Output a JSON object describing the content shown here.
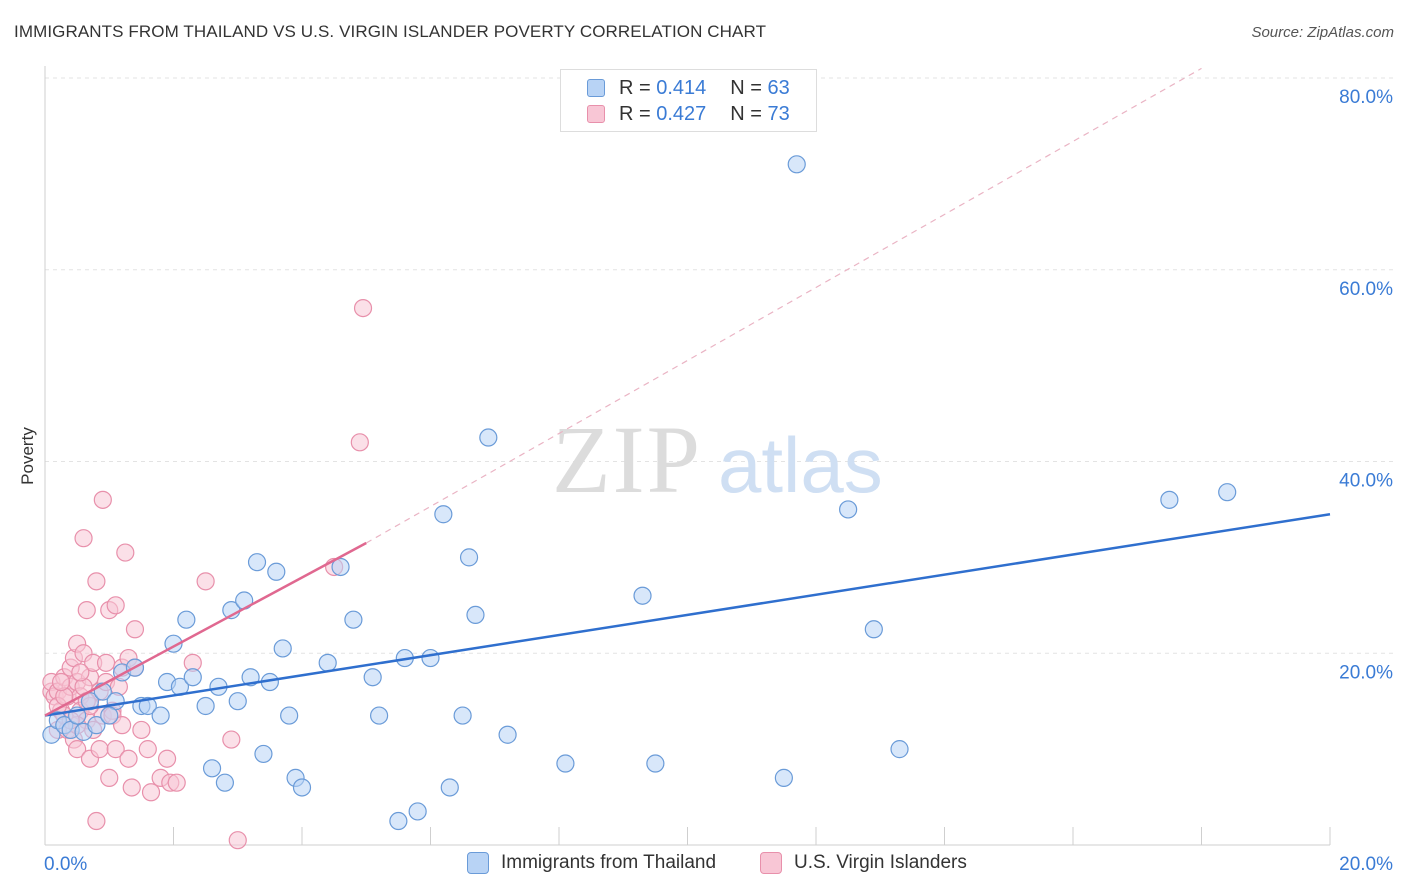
{
  "title": "IMMIGRANTS FROM THAILAND VS U.S. VIRGIN ISLANDER POVERTY CORRELATION CHART",
  "source": "Source: ZipAtlas.com",
  "watermark": {
    "zip": "ZIP",
    "atlas": "atlas"
  },
  "legend": {
    "r_label": "R =",
    "n_label": "N =",
    "series1": {
      "r": "0.414",
      "n": "63"
    },
    "series2": {
      "r": "0.427",
      "n": "73"
    }
  },
  "colors": {
    "blue_fill": "#b8d3f5",
    "blue_stroke": "#6a9bd8",
    "blue_line": "#2f6fce",
    "pink_fill": "#f8c6d5",
    "pink_stroke": "#e890ab",
    "pink_line": "#e06890",
    "axis_label": "#3a7bd5"
  },
  "chart_data": {
    "type": "scatter",
    "title": "IMMIGRANTS FROM THAILAND VS U.S. VIRGIN ISLANDER POVERTY CORRELATION CHART",
    "xlabel": "",
    "ylabel": "Poverty",
    "xlim": [
      0,
      20
    ],
    "ylim": [
      0,
      80
    ],
    "x_tick_labels": [
      "0.0%",
      "20.0%"
    ],
    "y_ticks": [
      20,
      40,
      60,
      80
    ],
    "y_tick_labels": [
      "20.0%",
      "40.0%",
      "60.0%",
      "80.0%"
    ],
    "grid": true,
    "legend_position": "top-center",
    "series": [
      {
        "name": "Immigrants from Thailand",
        "r": 0.414,
        "n": 63,
        "trend": [
          [
            0,
            13.5
          ],
          [
            20,
            34.5
          ]
        ],
        "points": [
          [
            0.1,
            11.5
          ],
          [
            0.2,
            13
          ],
          [
            0.3,
            12.5
          ],
          [
            0.4,
            12
          ],
          [
            0.5,
            13.5
          ],
          [
            0.6,
            11.8
          ],
          [
            0.7,
            15
          ],
          [
            0.8,
            12.5
          ],
          [
            0.9,
            16
          ],
          [
            1.1,
            15
          ],
          [
            1.2,
            18
          ],
          [
            1.4,
            18.5
          ],
          [
            1.5,
            14.5
          ],
          [
            1.6,
            14.5
          ],
          [
            1.8,
            13.5
          ],
          [
            1.9,
            17
          ],
          [
            2.0,
            21
          ],
          [
            2.1,
            16.5
          ],
          [
            2.2,
            23.5
          ],
          [
            2.3,
            17.5
          ],
          [
            2.5,
            14.5
          ],
          [
            2.6,
            8
          ],
          [
            2.7,
            16.5
          ],
          [
            2.8,
            6.5
          ],
          [
            2.9,
            24.5
          ],
          [
            3.0,
            15
          ],
          [
            3.1,
            25.5
          ],
          [
            3.2,
            17.5
          ],
          [
            3.3,
            29.5
          ],
          [
            3.4,
            9.5
          ],
          [
            3.5,
            17
          ],
          [
            3.6,
            28.5
          ],
          [
            3.7,
            20.5
          ],
          [
            3.8,
            13.5
          ],
          [
            3.9,
            7
          ],
          [
            4.0,
            6
          ],
          [
            4.4,
            19
          ],
          [
            4.6,
            29
          ],
          [
            4.8,
            23.5
          ],
          [
            5.1,
            17.5
          ],
          [
            5.2,
            13.5
          ],
          [
            5.5,
            2.5
          ],
          [
            5.6,
            19.5
          ],
          [
            5.8,
            3.5
          ],
          [
            6.0,
            19.5
          ],
          [
            6.2,
            34.5
          ],
          [
            6.3,
            6
          ],
          [
            6.5,
            13.5
          ],
          [
            6.6,
            30
          ],
          [
            6.7,
            24
          ],
          [
            6.9,
            42.5
          ],
          [
            7.2,
            11.5
          ],
          [
            8.1,
            8.5
          ],
          [
            9.3,
            26
          ],
          [
            9.5,
            8.5
          ],
          [
            11.5,
            7
          ],
          [
            11.7,
            71
          ],
          [
            12.5,
            35
          ],
          [
            12.9,
            22.5
          ],
          [
            13.3,
            10
          ],
          [
            17.5,
            36
          ],
          [
            18.4,
            36.8
          ],
          [
            1.0,
            13.5
          ]
        ]
      },
      {
        "name": "U.S. Virgin Islanders",
        "r": 0.427,
        "n": 73,
        "trend": [
          [
            0,
            13.5
          ],
          [
            5.0,
            31.5
          ]
        ],
        "trend_dashed": [
          [
            5.0,
            31.5
          ],
          [
            18.0,
            81
          ]
        ],
        "points": [
          [
            0.1,
            16
          ],
          [
            0.1,
            17
          ],
          [
            0.15,
            15.5
          ],
          [
            0.2,
            16
          ],
          [
            0.2,
            12
          ],
          [
            0.25,
            14
          ],
          [
            0.3,
            17.5
          ],
          [
            0.3,
            13.5
          ],
          [
            0.35,
            15.5
          ],
          [
            0.35,
            12
          ],
          [
            0.4,
            18.5
          ],
          [
            0.4,
            16.5
          ],
          [
            0.45,
            19.5
          ],
          [
            0.45,
            11
          ],
          [
            0.5,
            21
          ],
          [
            0.5,
            17
          ],
          [
            0.5,
            10
          ],
          [
            0.55,
            15.5
          ],
          [
            0.55,
            14
          ],
          [
            0.6,
            32
          ],
          [
            0.6,
            20
          ],
          [
            0.65,
            24.5
          ],
          [
            0.65,
            13
          ],
          [
            0.7,
            17.5
          ],
          [
            0.7,
            9
          ],
          [
            0.75,
            19
          ],
          [
            0.75,
            12
          ],
          [
            0.8,
            2.5
          ],
          [
            0.8,
            27.5
          ],
          [
            0.85,
            16
          ],
          [
            0.85,
            10
          ],
          [
            0.9,
            36
          ],
          [
            0.9,
            13.5
          ],
          [
            0.95,
            19
          ],
          [
            0.95,
            17
          ],
          [
            1.0,
            24.5
          ],
          [
            1.0,
            7
          ],
          [
            1.05,
            14
          ],
          [
            1.05,
            13.5
          ],
          [
            1.1,
            25
          ],
          [
            1.1,
            10
          ],
          [
            1.15,
            16.5
          ],
          [
            1.2,
            18.5
          ],
          [
            1.2,
            12.5
          ],
          [
            1.25,
            30.5
          ],
          [
            1.3,
            19.5
          ],
          [
            1.3,
            9
          ],
          [
            1.35,
            6
          ],
          [
            1.4,
            22.5
          ],
          [
            1.4,
            18.5
          ],
          [
            1.5,
            12
          ],
          [
            1.6,
            10
          ],
          [
            1.65,
            5.5
          ],
          [
            1.8,
            7
          ],
          [
            1.9,
            9
          ],
          [
            1.95,
            6.5
          ],
          [
            2.05,
            6.5
          ],
          [
            2.3,
            19
          ],
          [
            2.5,
            27.5
          ],
          [
            2.9,
            11
          ],
          [
            3.0,
            0.5
          ],
          [
            4.5,
            29
          ],
          [
            4.9,
            42
          ],
          [
            4.95,
            56
          ],
          [
            0.2,
            14.5
          ],
          [
            0.3,
            15.5
          ],
          [
            0.5,
            12.5
          ],
          [
            0.6,
            16.5
          ],
          [
            0.7,
            14.5
          ],
          [
            0.4,
            13
          ],
          [
            0.55,
            18
          ],
          [
            0.25,
            17
          ],
          [
            0.65,
            15
          ]
        ]
      }
    ]
  }
}
